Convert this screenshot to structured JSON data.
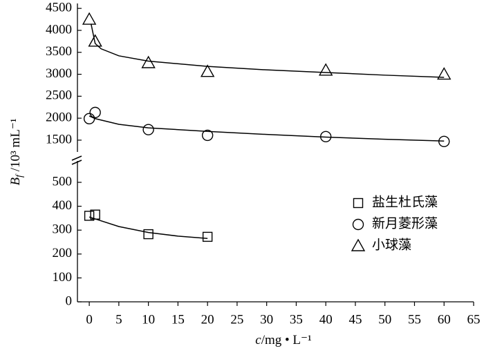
{
  "chart_data": {
    "type": "scatter",
    "x_label": {
      "symbol": "c",
      "unit": "/mg • L⁻¹"
    },
    "y_label": {
      "symbol": "B",
      "subscript": "f",
      "unit": " /10³ mL⁻¹"
    },
    "xlim": [
      -2,
      65
    ],
    "xticks": [
      0,
      5,
      10,
      15,
      20,
      25,
      30,
      35,
      40,
      45,
      50,
      55,
      60,
      65
    ],
    "ylim": [
      0,
      600
    ],
    "yticks": [
      0,
      100,
      200,
      300,
      400,
      500
    ],
    "ylim_upper": [
      1200,
      4600
    ],
    "yticks_upper": [
      1500,
      2000,
      2500,
      3000,
      3500,
      4000,
      4500
    ],
    "series": [
      {
        "name": "盐生杜氏藻",
        "marker": "square",
        "color": "#000000",
        "x": [
          0,
          1,
          10,
          20
        ],
        "values": [
          360,
          365,
          283,
          272
        ],
        "fit_x": [
          0,
          5,
          10,
          15,
          20
        ],
        "fit_values": [
          355,
          315,
          290,
          275,
          265
        ]
      },
      {
        "name": "新月菱形藻",
        "marker": "circle",
        "color": "#000000",
        "x": [
          0,
          1,
          10,
          20,
          40,
          60
        ],
        "values": [
          1990,
          2130,
          1740,
          1610,
          1580,
          1470
        ],
        "fit_x": [
          0,
          1,
          5,
          10,
          20,
          30,
          40,
          50,
          60
        ],
        "fit_values": [
          2050,
          1990,
          1860,
          1780,
          1700,
          1630,
          1570,
          1520,
          1480
        ]
      },
      {
        "name": "小球藻",
        "marker": "triangle",
        "color": "#000000",
        "x": [
          0,
          1,
          10,
          20,
          40,
          60
        ],
        "values": [
          4250,
          3750,
          3260,
          3060,
          3090,
          3000
        ],
        "fit_x": [
          0.3,
          1,
          2,
          5,
          10,
          20,
          30,
          40,
          50,
          60
        ],
        "fit_values": [
          4150,
          3700,
          3580,
          3420,
          3300,
          3180,
          3100,
          3040,
          2980,
          2930
        ]
      }
    ]
  }
}
